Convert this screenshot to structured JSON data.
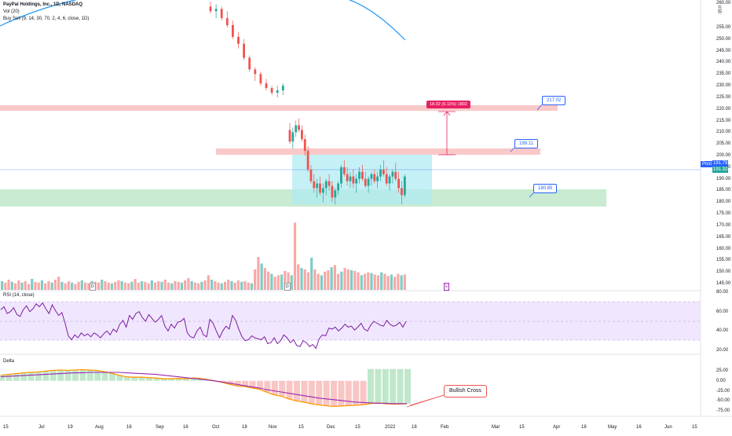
{
  "header": {
    "symbol_line": "PayPal Holdings, Inc., 1D, NASDAQ",
    "vol_line": "Vol (20)",
    "strategy_line": "Buy Sell (9, 14, 30, 70, 2, 4, 6, close, 1D)",
    "currency": "USD"
  },
  "colors": {
    "up": "#26a69a",
    "down": "#ef5350",
    "resistance_zone": "#f8c9c8",
    "support_zone": "#c8ebd2",
    "range_box": "#b2ebf2",
    "curve": "#2196f3",
    "price_line": "#2962ff",
    "rsi_band": "#f0e6fd",
    "rsi_line": "#7b1fa2",
    "delta_fast": "#ff9800",
    "delta_slow": "#9c27b0",
    "target_label": "#e91e63"
  },
  "price_axis": {
    "ticks": [
      "255.00",
      "250.00",
      "245.00",
      "240.00",
      "235.00",
      "230.00",
      "225.00",
      "220.00",
      "215.00",
      "210.00",
      "205.00",
      "200.00",
      "195.00",
      "190.00",
      "185.00",
      "180.00",
      "175.00",
      "170.00",
      "165.00",
      "160.00",
      "155.00",
      "150.00",
      "145.00"
    ],
    "last_price": "191.79",
    "last_price_2": "191.32",
    "post_tag": "Post",
    "top_tick": "260.00"
  },
  "levels": {
    "resistance_label": "217.02",
    "mid_label": "199.11",
    "support_label": "180.85",
    "target_label": "18.02 (9.11%) 1802"
  },
  "events": {
    "earn_marker": "E",
    "div_marker": "D"
  },
  "rsi": {
    "title": "RSI (14, close)",
    "ticks": [
      "80.00",
      "60.00",
      "40.00",
      "20.00"
    ]
  },
  "delta": {
    "title": "Delta",
    "ticks": [
      "25.00",
      "0.00",
      "-25.00",
      "-50.00",
      "-75.00"
    ],
    "annotation": "Bullish Cross"
  },
  "time_axis": {
    "labels": [
      "15",
      "Jul",
      "19",
      "Aug",
      "16",
      "Sep",
      "16",
      "Oct",
      "18",
      "Nov",
      "15",
      "Dec",
      "15",
      "2022",
      "18",
      "Feb",
      "Mar",
      "15",
      "Apr",
      "18",
      "May",
      "16",
      "Jun",
      "15"
    ]
  },
  "chart_data": {
    "type": "candlestick",
    "symbol": "PayPal Holdings, Inc., 1D, NASDAQ",
    "price_range": [
      142,
      262
    ],
    "levels": [
      217.02,
      199.11,
      180.85
    ],
    "candles": [
      [
        264,
        266,
        261,
        262
      ],
      [
        262,
        265,
        259,
        263
      ],
      [
        263,
        264,
        258,
        259
      ],
      [
        259,
        262,
        255,
        256
      ],
      [
        256,
        258,
        250,
        251
      ],
      [
        251,
        253,
        246,
        248
      ],
      [
        248,
        250,
        241,
        242
      ],
      [
        242,
        243,
        236,
        237
      ],
      [
        237,
        238,
        232,
        235
      ],
      [
        235,
        236,
        230,
        231
      ],
      [
        231,
        233,
        228,
        229
      ],
      [
        229,
        230,
        226,
        227
      ],
      [
        227,
        230,
        225,
        228
      ],
      [
        228,
        231,
        226,
        230
      ],
      [
        211,
        214,
        205,
        206
      ],
      [
        206,
        212,
        203,
        210
      ],
      [
        210,
        215,
        208,
        213
      ],
      [
        213,
        216,
        210,
        211
      ],
      [
        211,
        213,
        206,
        207
      ],
      [
        207,
        209,
        200,
        202
      ],
      [
        202,
        204,
        193,
        194
      ],
      [
        194,
        196,
        188,
        189
      ],
      [
        189,
        192,
        184,
        186
      ],
      [
        186,
        190,
        182,
        188
      ],
      [
        188,
        191,
        183,
        184
      ],
      [
        184,
        188,
        180,
        186
      ],
      [
        186,
        190,
        183,
        189
      ],
      [
        189,
        192,
        185,
        187
      ],
      [
        187,
        189,
        180,
        182
      ],
      [
        182,
        186,
        179,
        185
      ],
      [
        185,
        189,
        183,
        188
      ],
      [
        188,
        196,
        186,
        195
      ],
      [
        195,
        198,
        191,
        192
      ],
      [
        192,
        195,
        187,
        189
      ],
      [
        189,
        193,
        186,
        191
      ],
      [
        191,
        194,
        186,
        188
      ],
      [
        188,
        192,
        184,
        190
      ],
      [
        190,
        195,
        188,
        193
      ],
      [
        193,
        196,
        189,
        190
      ],
      [
        190,
        193,
        186,
        187
      ],
      [
        187,
        191,
        184,
        190
      ],
      [
        190,
        193,
        187,
        192
      ],
      [
        192,
        194,
        188,
        189
      ],
      [
        189,
        193,
        186,
        191
      ],
      [
        191,
        196,
        189,
        194
      ],
      [
        194,
        198,
        191,
        192
      ],
      [
        192,
        195,
        187,
        188
      ],
      [
        188,
        192,
        185,
        191
      ],
      [
        191,
        194,
        188,
        193
      ],
      [
        193,
        197,
        189,
        190
      ],
      [
        190,
        193,
        184,
        186
      ],
      [
        186,
        189,
        179,
        183
      ],
      [
        183,
        192,
        182,
        191
      ]
    ],
    "rsi_range": [
      15,
      85
    ],
    "rsi": [
      62,
      65,
      58,
      60,
      64,
      57,
      55,
      62,
      66,
      60,
      63,
      68,
      65,
      69,
      63,
      58,
      67,
      61,
      56,
      59,
      48,
      35,
      31,
      36,
      33,
      38,
      35,
      37,
      34,
      38,
      36,
      33,
      37,
      40,
      36,
      42,
      39,
      47,
      51,
      44,
      56,
      52,
      58,
      60,
      54,
      50,
      57,
      53,
      49,
      52,
      56,
      45,
      40,
      47,
      43,
      49,
      50,
      53,
      38,
      34,
      33,
      40,
      44,
      36,
      34,
      52,
      48,
      40,
      33,
      40,
      45,
      42,
      56,
      51,
      42,
      34,
      30,
      31,
      35,
      33,
      32,
      31,
      34,
      27,
      28,
      33,
      27,
      30,
      36,
      33,
      28,
      31,
      25,
      24,
      30,
      28,
      24,
      26,
      22,
      32,
      36,
      35,
      43,
      42,
      44,
      40,
      43,
      47,
      44,
      45,
      41,
      44,
      48,
      42,
      40,
      46,
      50,
      48,
      46,
      45,
      51,
      47,
      45,
      46,
      49,
      44,
      50
    ],
    "delta_range": [
      -85,
      40
    ],
    "delta_fast": [
      14,
      16,
      18,
      20,
      21,
      22,
      24,
      26,
      27,
      26,
      27,
      28,
      27,
      26,
      23,
      19,
      14,
      10,
      9,
      9,
      8,
      7,
      5,
      5,
      6,
      5,
      7,
      6,
      3,
      0,
      -4,
      -9,
      -13,
      -14,
      -18,
      -21,
      -28,
      -35,
      -38,
      -45,
      -50,
      -53,
      -57,
      -60,
      -62,
      -64,
      -63,
      -62,
      -61,
      -60,
      -57,
      -55,
      -57,
      -58,
      -58,
      -57
    ],
    "delta_slow": [
      10,
      11,
      12,
      13,
      14,
      15,
      16,
      17,
      18,
      19,
      20,
      20,
      21,
      21,
      21,
      21,
      21,
      20,
      19,
      18,
      17,
      16,
      14,
      12,
      10,
      8,
      6,
      4,
      2,
      0,
      -3,
      -6,
      -9,
      -12,
      -15,
      -18,
      -22,
      -25,
      -28,
      -31,
      -34,
      -37,
      -40,
      -43,
      -45,
      -47,
      -49,
      -51,
      -53,
      -54,
      -55,
      -56,
      -56,
      -57,
      -57,
      -57
    ],
    "volume_scale": [
      0,
      100
    ],
    "volume": [
      12,
      10,
      14,
      11,
      9,
      13,
      10,
      12,
      8,
      15,
      11,
      10,
      13,
      9,
      12,
      10,
      14,
      18,
      11,
      9,
      12,
      10,
      8,
      11,
      13,
      10,
      9,
      12,
      11,
      10,
      14,
      12,
      10,
      9,
      11,
      13,
      12,
      10,
      9,
      11,
      15,
      10,
      12,
      11,
      9,
      13,
      10,
      12,
      11,
      14,
      10,
      9,
      12,
      11,
      10,
      13,
      16,
      12,
      10,
      9,
      11,
      13,
      20,
      14,
      12,
      10,
      9,
      11,
      14,
      12,
      10,
      13,
      11,
      12,
      10,
      9,
      28,
      45,
      36,
      30,
      25,
      22,
      18,
      20,
      21,
      26,
      24,
      20,
      92,
      35,
      30,
      28,
      24,
      44,
      28,
      22,
      20,
      25,
      27,
      31,
      34,
      22,
      25,
      30,
      28,
      27,
      26,
      24,
      20,
      22,
      24,
      23,
      21,
      20,
      24,
      22,
      19,
      21,
      18,
      22,
      20,
      21
    ]
  }
}
